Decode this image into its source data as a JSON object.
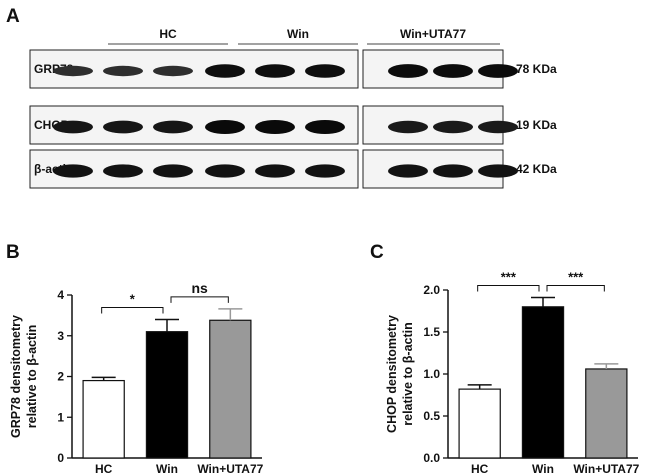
{
  "figure": {
    "panels": {
      "a": "A",
      "b": "B",
      "c": "C"
    }
  },
  "blot": {
    "groups": [
      "HC",
      "Win",
      "Win+UTA77"
    ],
    "rows": [
      {
        "name": "GRP78",
        "size": "78 KDa",
        "intensity": [
          0.55,
          0.55,
          0.55,
          0.95,
          0.95,
          0.95,
          0.98,
          0.98,
          0.98
        ]
      },
      {
        "name": "CHOP",
        "size": "19 KDa",
        "intensity": [
          0.85,
          0.85,
          0.85,
          1.0,
          1.0,
          1.0,
          0.8,
          0.8,
          0.8
        ]
      },
      {
        "name": "β-actin",
        "size": "42 KDa",
        "intensity": [
          0.9,
          0.9,
          0.9,
          0.9,
          0.9,
          0.9,
          0.9,
          0.9,
          0.9
        ]
      }
    ]
  },
  "chart_data": [
    {
      "type": "bar",
      "panel": "B",
      "categories": [
        "HC",
        "Win",
        "Win+UTA77"
      ],
      "values": [
        1.9,
        3.1,
        3.38
      ],
      "errors": [
        0.08,
        0.3,
        0.28
      ],
      "colors": [
        "#ffffff",
        "#000000",
        "#999999"
      ],
      "ylabel": [
        "GRP78 densitometry",
        "relative to β-actin"
      ],
      "ylim": [
        0,
        4
      ],
      "yticks": [
        "0",
        "1",
        "2",
        "3",
        "4"
      ],
      "comparisons": [
        {
          "from": 0,
          "to": 1,
          "label": "*"
        },
        {
          "from": 1,
          "to": 2,
          "label": "ns"
        }
      ]
    },
    {
      "type": "bar",
      "panel": "C",
      "categories": [
        "HC",
        "Win",
        "Win+UTA77"
      ],
      "values": [
        0.82,
        1.8,
        1.06
      ],
      "errors": [
        0.05,
        0.11,
        0.06
      ],
      "colors": [
        "#ffffff",
        "#000000",
        "#999999"
      ],
      "ylabel": [
        "CHOP densitometry",
        "relative to β-actin"
      ],
      "ylim": [
        0,
        2.0
      ],
      "yticks": [
        "0.0",
        "0.5",
        "1.0",
        "1.5",
        "2.0"
      ],
      "comparisons": [
        {
          "from": 0,
          "to": 1,
          "label": "***"
        },
        {
          "from": 1,
          "to": 2,
          "label": "***"
        }
      ]
    }
  ]
}
